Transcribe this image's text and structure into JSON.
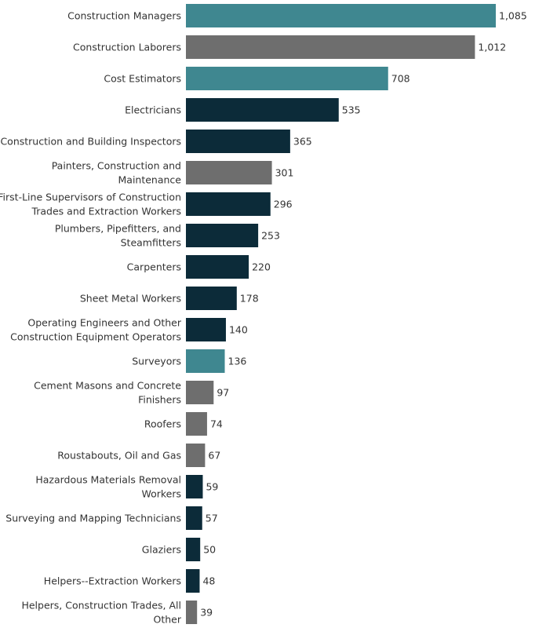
{
  "chart_data": {
    "type": "bar",
    "orientation": "horizontal",
    "title": "",
    "xlabel": "",
    "ylabel": "",
    "xlim": [
      0,
      1085
    ],
    "colors": {
      "teal": "#3f8790",
      "gray": "#6e6e6e",
      "navy": "#0c2b39"
    },
    "bars": [
      {
        "label": [
          "Construction Managers"
        ],
        "value": 1085,
        "value_label": "1,085",
        "color": "teal"
      },
      {
        "label": [
          "Construction Laborers"
        ],
        "value": 1012,
        "value_label": "1,012",
        "color": "gray"
      },
      {
        "label": [
          "Cost Estimators"
        ],
        "value": 708,
        "value_label": "708",
        "color": "teal"
      },
      {
        "label": [
          "Electricians"
        ],
        "value": 535,
        "value_label": "535",
        "color": "navy"
      },
      {
        "label": [
          "Construction and Building Inspectors"
        ],
        "value": 365,
        "value_label": "365",
        "color": "navy"
      },
      {
        "label": [
          "Painters, Construction and",
          "Maintenance"
        ],
        "value": 301,
        "value_label": "301",
        "color": "gray"
      },
      {
        "label": [
          "First-Line Supervisors of Construction",
          "Trades and Extraction Workers"
        ],
        "value": 296,
        "value_label": "296",
        "color": "navy"
      },
      {
        "label": [
          "Plumbers, Pipefitters, and",
          "Steamfitters"
        ],
        "value": 253,
        "value_label": "253",
        "color": "navy"
      },
      {
        "label": [
          "Carpenters"
        ],
        "value": 220,
        "value_label": "220",
        "color": "navy"
      },
      {
        "label": [
          "Sheet Metal Workers"
        ],
        "value": 178,
        "value_label": "178",
        "color": "navy"
      },
      {
        "label": [
          "Operating Engineers and Other",
          "Construction Equipment Operators"
        ],
        "value": 140,
        "value_label": "140",
        "color": "navy"
      },
      {
        "label": [
          "Surveyors"
        ],
        "value": 136,
        "value_label": "136",
        "color": "teal"
      },
      {
        "label": [
          "Cement Masons and Concrete",
          "Finishers"
        ],
        "value": 97,
        "value_label": "97",
        "color": "gray"
      },
      {
        "label": [
          "Roofers"
        ],
        "value": 74,
        "value_label": "74",
        "color": "gray"
      },
      {
        "label": [
          "Roustabouts, Oil and Gas"
        ],
        "value": 67,
        "value_label": "67",
        "color": "gray"
      },
      {
        "label": [
          "Hazardous Materials Removal",
          "Workers"
        ],
        "value": 59,
        "value_label": "59",
        "color": "navy"
      },
      {
        "label": [
          "Surveying and Mapping Technicians"
        ],
        "value": 57,
        "value_label": "57",
        "color": "navy"
      },
      {
        "label": [
          "Glaziers"
        ],
        "value": 50,
        "value_label": "50",
        "color": "navy"
      },
      {
        "label": [
          "Helpers--Extraction Workers"
        ],
        "value": 48,
        "value_label": "48",
        "color": "navy"
      },
      {
        "label": [
          "Helpers, Construction Trades, All",
          "Other"
        ],
        "value": 39,
        "value_label": "39",
        "color": "gray"
      }
    ]
  }
}
